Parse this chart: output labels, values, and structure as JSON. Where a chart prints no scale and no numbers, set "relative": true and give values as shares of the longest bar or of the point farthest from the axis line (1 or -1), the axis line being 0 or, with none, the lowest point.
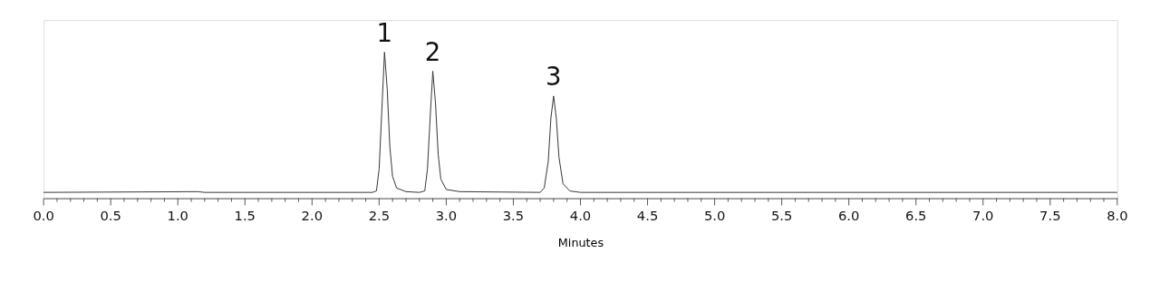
{
  "chart_data": {
    "type": "line",
    "relative": true,
    "xlabel": "Minutes",
    "xlim": [
      0,
      8
    ],
    "xticks": [
      {
        "value": 0,
        "label": "0.0"
      },
      {
        "value": 0.1,
        "label": null
      },
      {
        "value": 0.2,
        "label": null
      },
      {
        "value": 0.3,
        "label": null
      },
      {
        "value": 0.4,
        "label": null
      },
      {
        "value": 0.5,
        "label": "0.5"
      },
      {
        "value": 0.6,
        "label": null
      },
      {
        "value": 0.7,
        "label": null
      },
      {
        "value": 0.8,
        "label": null
      },
      {
        "value": 0.9,
        "label": null
      },
      {
        "value": 1,
        "label": "1.0"
      },
      {
        "value": 1.1,
        "label": null
      },
      {
        "value": 1.2,
        "label": null
      },
      {
        "value": 1.3,
        "label": null
      },
      {
        "value": 1.4,
        "label": null
      },
      {
        "value": 1.5,
        "label": "1.5"
      },
      {
        "value": 1.6,
        "label": null
      },
      {
        "value": 1.7,
        "label": null
      },
      {
        "value": 1.8,
        "label": null
      },
      {
        "value": 1.9,
        "label": null
      },
      {
        "value": 2,
        "label": "2.0"
      },
      {
        "value": 2.1,
        "label": null
      },
      {
        "value": 2.2,
        "label": null
      },
      {
        "value": 2.3,
        "label": null
      },
      {
        "value": 2.4,
        "label": null
      },
      {
        "value": 2.5,
        "label": "2.5"
      },
      {
        "value": 2.6,
        "label": null
      },
      {
        "value": 2.7,
        "label": null
      },
      {
        "value": 2.8,
        "label": null
      },
      {
        "value": 2.9,
        "label": null
      },
      {
        "value": 3,
        "label": "3.0"
      },
      {
        "value": 3.1,
        "label": null
      },
      {
        "value": 3.2,
        "label": null
      },
      {
        "value": 3.3,
        "label": null
      },
      {
        "value": 3.4,
        "label": null
      },
      {
        "value": 3.5,
        "label": "3.5"
      },
      {
        "value": 3.6,
        "label": null
      },
      {
        "value": 3.7,
        "label": null
      },
      {
        "value": 3.8,
        "label": null
      },
      {
        "value": 3.9,
        "label": null
      },
      {
        "value": 4,
        "label": "4.0"
      },
      {
        "value": 4.1,
        "label": null
      },
      {
        "value": 4.2,
        "label": null
      },
      {
        "value": 4.3,
        "label": null
      },
      {
        "value": 4.4,
        "label": null
      },
      {
        "value": 4.5,
        "label": "4.5"
      },
      {
        "value": 4.6,
        "label": null
      },
      {
        "value": 4.7,
        "label": null
      },
      {
        "value": 4.8,
        "label": null
      },
      {
        "value": 4.9,
        "label": null
      },
      {
        "value": 5,
        "label": "5.0"
      },
      {
        "value": 5.1,
        "label": null
      },
      {
        "value": 5.2,
        "label": null
      },
      {
        "value": 5.3,
        "label": null
      },
      {
        "value": 5.4,
        "label": null
      },
      {
        "value": 5.5,
        "label": "5.5"
      },
      {
        "value": 5.6,
        "label": null
      },
      {
        "value": 5.7,
        "label": null
      },
      {
        "value": 5.8,
        "label": null
      },
      {
        "value": 5.9,
        "label": null
      },
      {
        "value": 6,
        "label": "6.0"
      },
      {
        "value": 6.1,
        "label": null
      },
      {
        "value": 6.2,
        "label": null
      },
      {
        "value": 6.3,
        "label": null
      },
      {
        "value": 6.4,
        "label": null
      },
      {
        "value": 6.5,
        "label": "6.5"
      },
      {
        "value": 6.6,
        "label": null
      },
      {
        "value": 6.7,
        "label": null
      },
      {
        "value": 6.8,
        "label": null
      },
      {
        "value": 6.9,
        "label": null
      },
      {
        "value": 7,
        "label": "7.0"
      },
      {
        "value": 7.1,
        "label": null
      },
      {
        "value": 7.2,
        "label": null
      },
      {
        "value": 7.3,
        "label": null
      },
      {
        "value": 7.4,
        "label": null
      },
      {
        "value": 7.5,
        "label": "7.5"
      },
      {
        "value": 7.6,
        "label": null
      },
      {
        "value": 7.7,
        "label": null
      },
      {
        "value": 7.8,
        "label": null
      },
      {
        "value": 7.9,
        "label": null
      },
      {
        "value": 8,
        "label": "8.0"
      }
    ],
    "grid": false,
    "series": [
      {
        "color": "#333333",
        "x": [
          0,
          1.15,
          1.2,
          2.45,
          2.48,
          2.5,
          2.52,
          2.54,
          2.56,
          2.58,
          2.6,
          2.63,
          2.7,
          2.8,
          2.84,
          2.86,
          2.88,
          2.9,
          2.92,
          2.94,
          2.96,
          3.0,
          3.1,
          3.7,
          3.73,
          3.76,
          3.78,
          3.8,
          3.82,
          3.84,
          3.87,
          3.92,
          4.0,
          8.0
        ],
        "values": [
          0.04,
          0.045,
          0.04,
          0.04,
          0.05,
          0.2,
          0.6,
          1.0,
          0.75,
          0.35,
          0.15,
          0.07,
          0.045,
          0.04,
          0.05,
          0.2,
          0.55,
          0.87,
          0.65,
          0.3,
          0.13,
          0.06,
          0.045,
          0.04,
          0.07,
          0.25,
          0.55,
          0.7,
          0.55,
          0.28,
          0.1,
          0.05,
          0.04,
          0.04
        ]
      }
    ],
    "annotations": [
      {
        "text": "1",
        "x": 2.54,
        "y": 1.0
      },
      {
        "text": "2",
        "x": 2.9,
        "y": 0.87
      },
      {
        "text": "3",
        "x": 3.8,
        "y": 0.7
      }
    ]
  }
}
